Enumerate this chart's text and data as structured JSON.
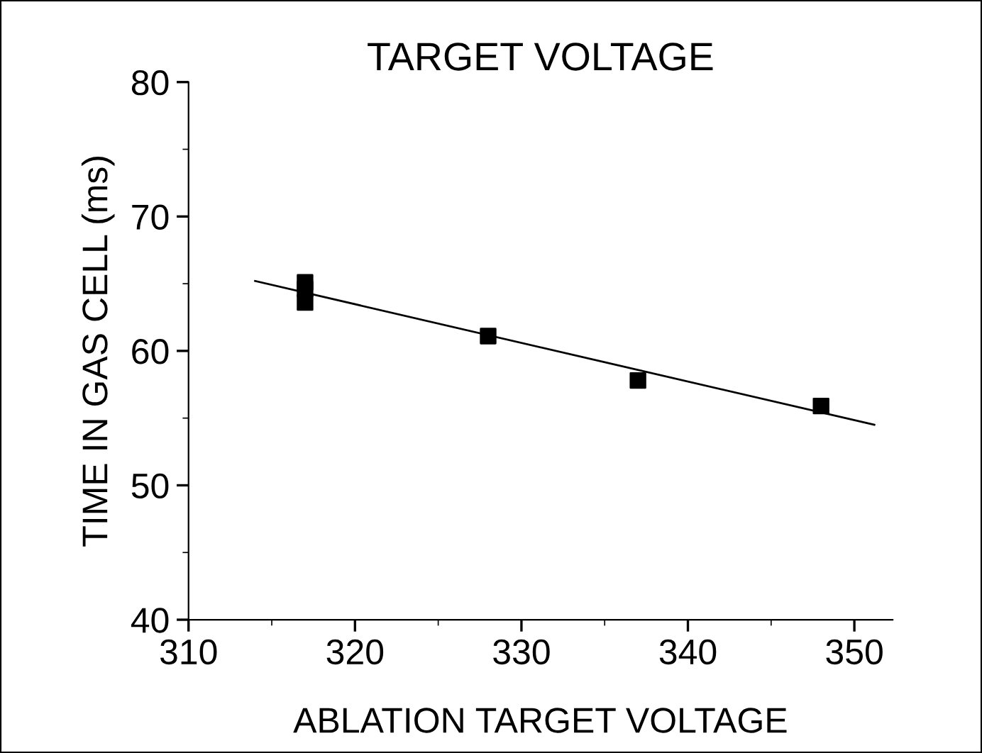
{
  "chart_data": {
    "type": "scatter",
    "title": "TARGET VOLTAGE",
    "xlabel": "ABLATION TARGET VOLTAGE",
    "ylabel": "TIME IN GAS CELL (ms)",
    "series": [
      {
        "color": "#000000",
        "marker": "square",
        "x": [
          317,
          317,
          317,
          328,
          337,
          348
        ],
        "values": [
          65.1,
          64.6,
          63.6,
          61.1,
          57.8,
          55.9
        ]
      },
      {
        "type": "line",
        "color": "#000000",
        "marker": "none",
        "line_style": "solid",
        "x": [
          314,
          351.2
        ],
        "values": [
          65.2,
          54.5
        ]
      }
    ],
    "xlim": [
      310,
      352.3
    ],
    "xticks": [
      310,
      320,
      330,
      340,
      350
    ],
    "ylim": [
      40,
      80
    ],
    "yticks": [
      40,
      50,
      60,
      70,
      80
    ],
    "grid": false,
    "legend": false
  }
}
